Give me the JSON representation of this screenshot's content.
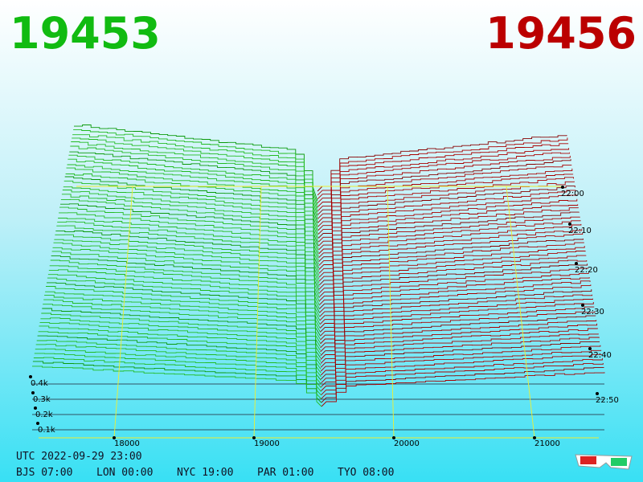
{
  "header": {
    "bid": "19453",
    "ask": "19456"
  },
  "price_axis": {
    "ticks": [
      "18000",
      "19000",
      "20000",
      "21000"
    ]
  },
  "depth_axis": {
    "ticks": [
      "0.4k",
      "0.3k",
      "0.2k",
      "0.1k"
    ]
  },
  "time_axis": {
    "ticks": [
      "22:00",
      "22:10",
      "22:20",
      "22:30",
      "22:40",
      "22:50"
    ]
  },
  "footer": {
    "utc": "UTC 2022-09-29 23:00",
    "zones": [
      "BJS 07:00",
      "LON 00:00",
      "NYC 19:00",
      "PAR 01:00",
      "TYO 08:00"
    ]
  }
}
